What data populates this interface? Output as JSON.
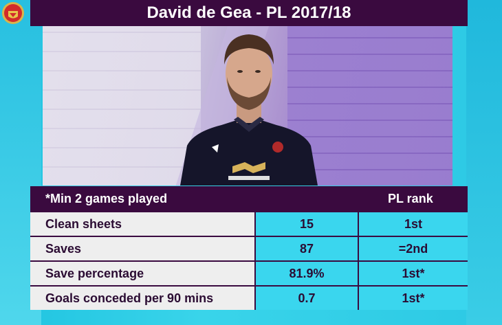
{
  "title": "David de Gea - PL 2017/18",
  "note": "*Min 2 games played",
  "rank_header": "PL rank",
  "stats": [
    {
      "label": "Clean sheets",
      "value": "15",
      "rank": "1st"
    },
    {
      "label": "Saves",
      "value": "87",
      "rank": "=2nd"
    },
    {
      "label": "Save percentage",
      "value": "81.9%",
      "rank": "1st*"
    },
    {
      "label": "Goals conceded per 90 mins",
      "value": "0.7",
      "rank": "1st*"
    }
  ],
  "colors": {
    "bar": "#3a0a3f",
    "accent_cyan": "#3ad6ee",
    "label_bg": "#eeeeee",
    "text_dark": "#2b0c33"
  },
  "icons": [
    "club-crest-icon",
    "sponsor-logo-icon"
  ]
}
